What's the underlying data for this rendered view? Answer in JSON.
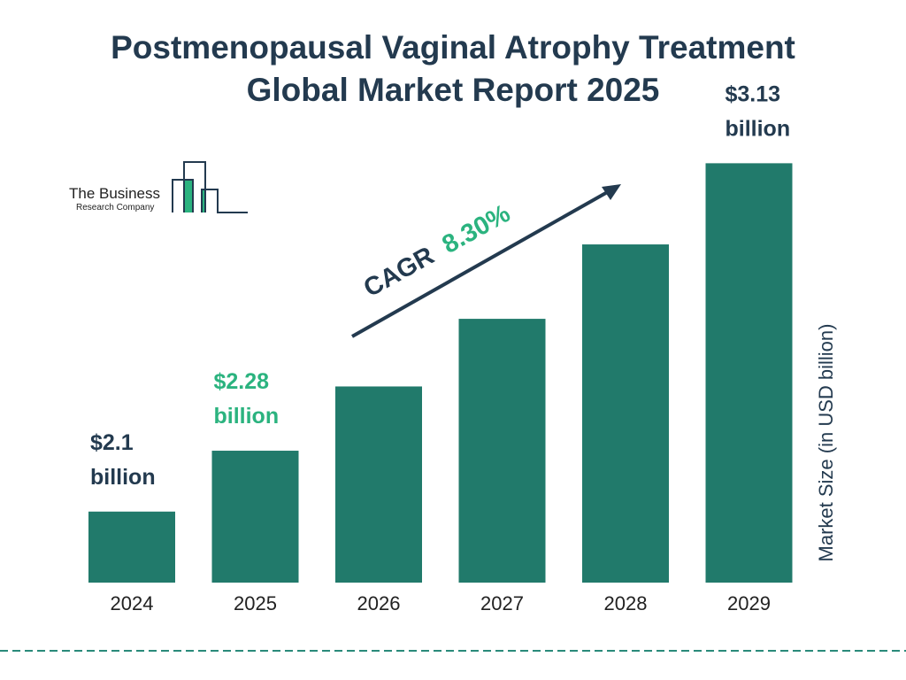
{
  "title_line1": "Postmenopausal Vaginal Atrophy Treatment",
  "title_line2": "Global Market Report 2025",
  "logo": {
    "line1": "The Business",
    "line2": "Research Company"
  },
  "colors": {
    "bar": "#217a6b",
    "title": "#233a4f",
    "highlight": "#2bb37f",
    "dash": "#2a8a7a"
  },
  "cagr": {
    "label": "CAGR",
    "value": "8.30%"
  },
  "chart_data": {
    "type": "bar",
    "categories": [
      "2024",
      "2025",
      "2026",
      "2027",
      "2028",
      "2029"
    ],
    "values": [
      2.1,
      2.28,
      2.47,
      2.67,
      2.89,
      3.13
    ],
    "data_labels": [
      {
        "category": "2024",
        "value": "$2.1",
        "unit": "billion"
      },
      {
        "category": "2025",
        "value": "$2.28",
        "unit": "billion"
      },
      {
        "category": "2029",
        "value": "$3.13",
        "unit": "billion"
      }
    ],
    "ylabel": "Market Size (in USD billion)",
    "xlabel": "",
    "ylim": [
      1.89,
      3.22
    ],
    "grid": false
  }
}
